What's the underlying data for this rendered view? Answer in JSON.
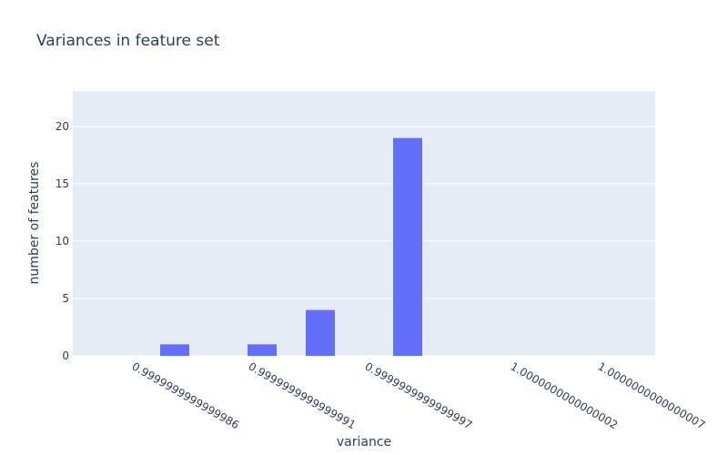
{
  "chart_data": {
    "type": "bar",
    "title": "Variances in feature set",
    "x_label": "variance",
    "y_label": "number of features",
    "categories": [
      null,
      null,
      "0.9999999999999986",
      null,
      null,
      null,
      "0.9999999999999991",
      null,
      null,
      null,
      "0.9999999999999997",
      null,
      null,
      null,
      null,
      "1.0000000000000002",
      null,
      null,
      "1.0000000000000007",
      null
    ],
    "values": [
      null,
      null,
      null,
      1,
      0,
      0,
      1,
      0,
      4,
      0,
      0,
      19,
      null,
      null,
      null,
      null,
      null,
      null,
      null,
      null
    ],
    "color": "#636efa",
    "ylim": [
      0,
      23.1
    ],
    "yticks": [
      0,
      5,
      10,
      15,
      20
    ],
    "grid": true
  }
}
